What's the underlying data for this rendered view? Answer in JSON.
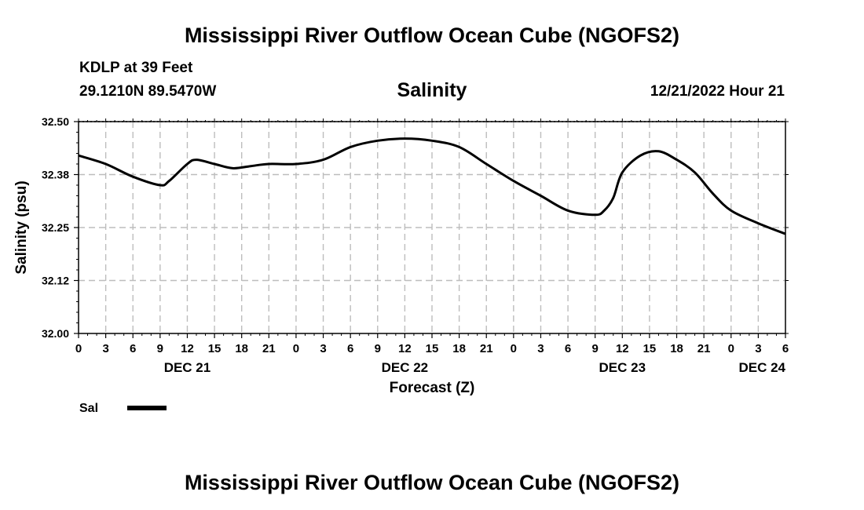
{
  "header": {
    "title": "Mississippi River Outflow Ocean Cube (NGOFS2)",
    "station": "KDLP at 39 Feet",
    "coords": "29.1210N  89.5470W",
    "chart_title": "Salinity",
    "datetime": "12/21/2022 Hour 21",
    "footer_title": "Mississippi River Outflow Ocean Cube (NGOFS2)"
  },
  "chart_data": {
    "type": "line",
    "title": "Salinity",
    "xlabel": "Forecast (Z)",
    "ylabel": "Salinity (psu)",
    "ylim": [
      32.0,
      32.5
    ],
    "xlim": [
      0,
      78
    ],
    "y_ticks": [
      "32.50",
      "32.38",
      "32.25",
      "32.12",
      "32.00"
    ],
    "y_tick_values": [
      32.5,
      32.375,
      32.25,
      32.125,
      32.0
    ],
    "x_ticks": [
      "0",
      "3",
      "6",
      "9",
      "12",
      "15",
      "18",
      "21",
      "0",
      "3",
      "6",
      "9",
      "12",
      "15",
      "18",
      "21",
      "0",
      "3",
      "6",
      "9",
      "12",
      "15",
      "18",
      "21",
      "0",
      "3",
      "6"
    ],
    "day_labels": [
      {
        "label": "DEC 21",
        "hour": 12
      },
      {
        "label": "DEC 22",
        "hour": 36
      },
      {
        "label": "DEC 23",
        "hour": 60
      },
      {
        "label": "DEC 24",
        "hour": 78
      }
    ],
    "grid": true,
    "legend": "bottom-left",
    "series": [
      {
        "name": "Sal",
        "color": "#000000",
        "x": [
          0,
          3,
          6,
          9,
          10,
          12,
          13,
          15,
          17,
          19,
          21,
          24,
          27,
          30,
          33,
          36,
          39,
          42,
          45,
          48,
          51,
          54,
          57,
          58,
          59,
          60,
          62,
          64,
          66,
          68,
          70,
          72,
          75,
          78
        ],
        "values": [
          32.42,
          32.4,
          32.37,
          32.35,
          32.36,
          32.4,
          32.41,
          32.4,
          32.39,
          32.395,
          32.4,
          32.4,
          32.41,
          32.44,
          32.455,
          32.46,
          32.455,
          32.44,
          32.4,
          32.36,
          32.325,
          32.29,
          32.28,
          32.29,
          32.32,
          32.38,
          32.42,
          32.43,
          32.41,
          32.38,
          32.33,
          32.29,
          32.26,
          32.235
        ]
      }
    ]
  }
}
